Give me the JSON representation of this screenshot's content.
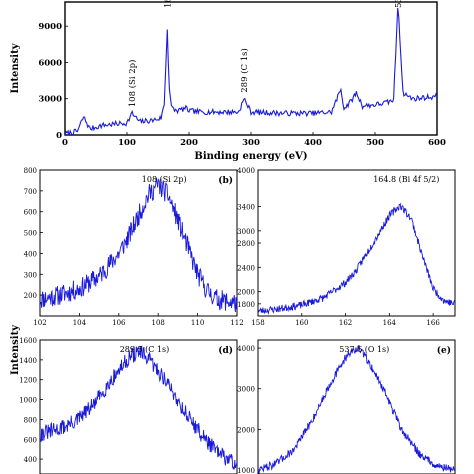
{
  "colors": {
    "line": "#1a1adb",
    "axis": "#000000",
    "background": "#ffffff"
  },
  "chart_data": [
    {
      "panel": "(a)",
      "type": "line",
      "xlabel": "Binding energy (eV)",
      "ylabel": "Intensity",
      "xlim": [
        0,
        600
      ],
      "ylim": [
        0,
        11000
      ],
      "x_ticks": [
        0,
        100,
        200,
        300,
        400,
        500,
        600
      ],
      "y_ticks": [
        0,
        3000,
        6000,
        9000
      ],
      "annotations": [
        {
          "text": "108 (Si 2p)",
          "x": 108
        },
        {
          "text": "165 (Bi",
          "x": 165
        },
        {
          "text": "289 (C 1s)",
          "x": 289
        },
        {
          "text": "53",
          "x": 537
        }
      ],
      "series": [
        {
          "x": [
            0,
            20,
            30,
            40,
            60,
            80,
            100,
            108,
            120,
            140,
            155,
            160,
            165,
            168,
            172,
            180,
            195,
            200,
            220,
            250,
            280,
            289,
            300,
            350,
            400,
            430,
            445,
            450,
            460,
            470,
            480,
            500,
            520,
            530,
            537,
            545,
            560,
            580,
            600
          ],
          "y": [
            100,
            300,
            1500,
            500,
            800,
            900,
            1000,
            1800,
            1100,
            1200,
            1400,
            2500,
            8800,
            4000,
            2200,
            2000,
            2200,
            2000,
            1900,
            1900,
            1900,
            3000,
            1900,
            1800,
            1800,
            1900,
            3800,
            2200,
            2700,
            3500,
            2400,
            2500,
            2700,
            2900,
            11000,
            3500,
            3000,
            3100,
            3200
          ]
        }
      ]
    },
    {
      "panel": "(b)",
      "type": "line",
      "annotation": "108 (Si 2p)",
      "xlim": [
        102,
        112
      ],
      "ylim": [
        100,
        800
      ],
      "x_ticks": [
        102,
        104,
        106,
        108,
        110,
        112
      ],
      "y_ticks": [
        200,
        300,
        400,
        500,
        600,
        700,
        800
      ],
      "series": [
        {
          "x": [
            102,
            103,
            104,
            105,
            106,
            106.5,
            107,
            107.5,
            108,
            108.5,
            109,
            109.5,
            110,
            110.5,
            111,
            112
          ],
          "y": [
            180,
            200,
            230,
            290,
            400,
            480,
            580,
            680,
            730,
            680,
            560,
            430,
            300,
            220,
            180,
            160
          ]
        }
      ]
    },
    {
      "panel": "",
      "type": "line",
      "annotation": "164.8 (Bi 4f 5/2)",
      "xlim": [
        158,
        167
      ],
      "ylim": [
        1600,
        4000
      ],
      "x_ticks": [
        158,
        160,
        162,
        164,
        166
      ],
      "y_ticks": [
        1800,
        2000,
        2400,
        2800,
        3000,
        3400,
        4000
      ],
      "series": [
        {
          "x": [
            158,
            159,
            160,
            161,
            162,
            162.5,
            163,
            163.5,
            164,
            164.5,
            165,
            165.5,
            166,
            166.5,
            167
          ],
          "y": [
            1680,
            1720,
            1780,
            1900,
            2150,
            2350,
            2650,
            2950,
            3250,
            3420,
            3200,
            2600,
            2050,
            1850,
            1800
          ]
        }
      ]
    },
    {
      "panel": "(d)",
      "type": "line",
      "annotation": "289.5 (C 1s)",
      "ylim": [
        250,
        1600
      ],
      "y_ticks": [
        400,
        600,
        800,
        1000,
        1200,
        1400,
        1600
      ],
      "series": [
        {
          "x": [
            284,
            285,
            286,
            287,
            288,
            289,
            289.5,
            290,
            291,
            292,
            293,
            294,
            295
          ],
          "y": [
            650,
            700,
            780,
            950,
            1200,
            1430,
            1480,
            1420,
            1200,
            900,
            650,
            450,
            350
          ]
        }
      ]
    },
    {
      "panel": "(e)",
      "type": "line",
      "annotation": "537.6 (O 1s)",
      "ylim": [
        900,
        4200
      ],
      "y_ticks": [
        1000,
        2000,
        3000,
        4000
      ],
      "series": [
        {
          "x": [
            532,
            533,
            534,
            535,
            536,
            537,
            537.6,
            538,
            539,
            540,
            541,
            542,
            543
          ],
          "y": [
            1000,
            1150,
            1500,
            2200,
            3100,
            3850,
            4000,
            3800,
            3000,
            2000,
            1400,
            1100,
            1000
          ]
        }
      ]
    }
  ],
  "shared_ylabel": "Intensity"
}
